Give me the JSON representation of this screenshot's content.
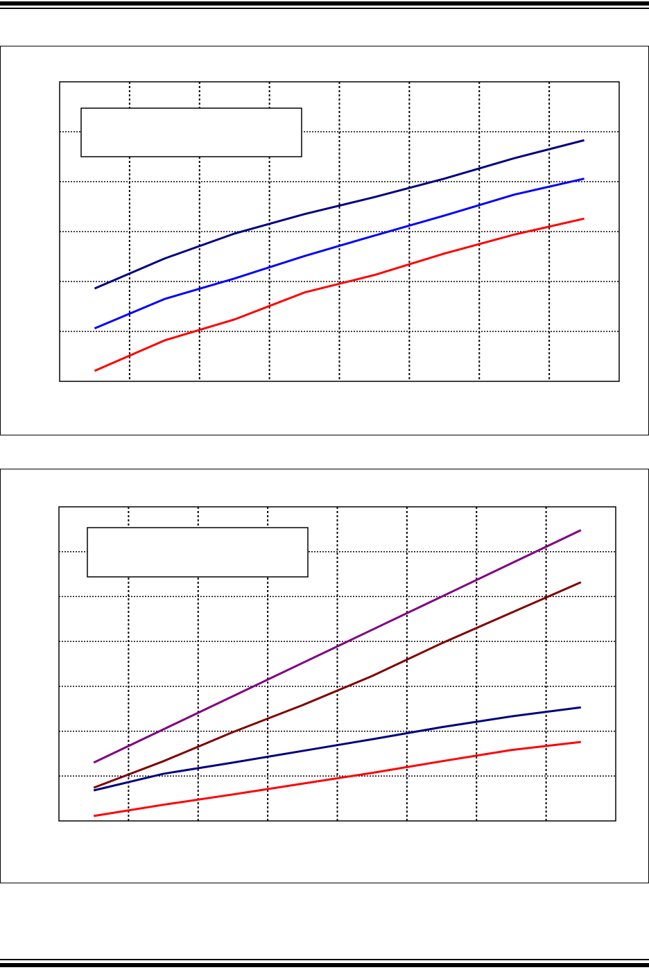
{
  "chart_data": [
    {
      "type": "line",
      "grid": true,
      "legend_placement": "top-left",
      "xlim": [
        0,
        8
      ],
      "ylim": [
        0,
        6
      ],
      "x": [
        0.5,
        1.5,
        2.5,
        3.5,
        4.5,
        5.5,
        6.5,
        7.5
      ],
      "series": [
        {
          "color": "#000080",
          "values": [
            1.86,
            2.46,
            2.96,
            3.35,
            3.69,
            4.06,
            4.47,
            4.83
          ]
        },
        {
          "color": "#0000ff",
          "values": [
            1.06,
            1.65,
            2.06,
            2.51,
            2.92,
            3.32,
            3.74,
            4.06
          ]
        },
        {
          "color": "#ff0000",
          "values": [
            0.21,
            0.82,
            1.24,
            1.78,
            2.13,
            2.56,
            2.94,
            3.26
          ]
        }
      ]
    },
    {
      "type": "line",
      "grid": true,
      "legend_placement": "top-left",
      "xlim": [
        0,
        8
      ],
      "ylim": [
        0,
        7
      ],
      "x": [
        0.5,
        1.5,
        2.5,
        3.5,
        4.5,
        5.5,
        6.5,
        7.5
      ],
      "series": [
        {
          "color": "#800080",
          "values": [
            1.3,
            2.04,
            2.78,
            3.52,
            4.26,
            5.0,
            5.74,
            6.48
          ]
        },
        {
          "color": "#800000",
          "values": [
            0.74,
            1.33,
            1.98,
            2.58,
            3.23,
            3.96,
            4.64,
            5.32
          ]
        },
        {
          "color": "#000080",
          "values": [
            0.68,
            1.05,
            1.3,
            1.56,
            1.82,
            2.09,
            2.33,
            2.53
          ]
        },
        {
          "color": "#ff0000",
          "values": [
            0.11,
            0.36,
            0.59,
            0.83,
            1.07,
            1.33,
            1.58,
            1.76
          ]
        }
      ]
    }
  ]
}
